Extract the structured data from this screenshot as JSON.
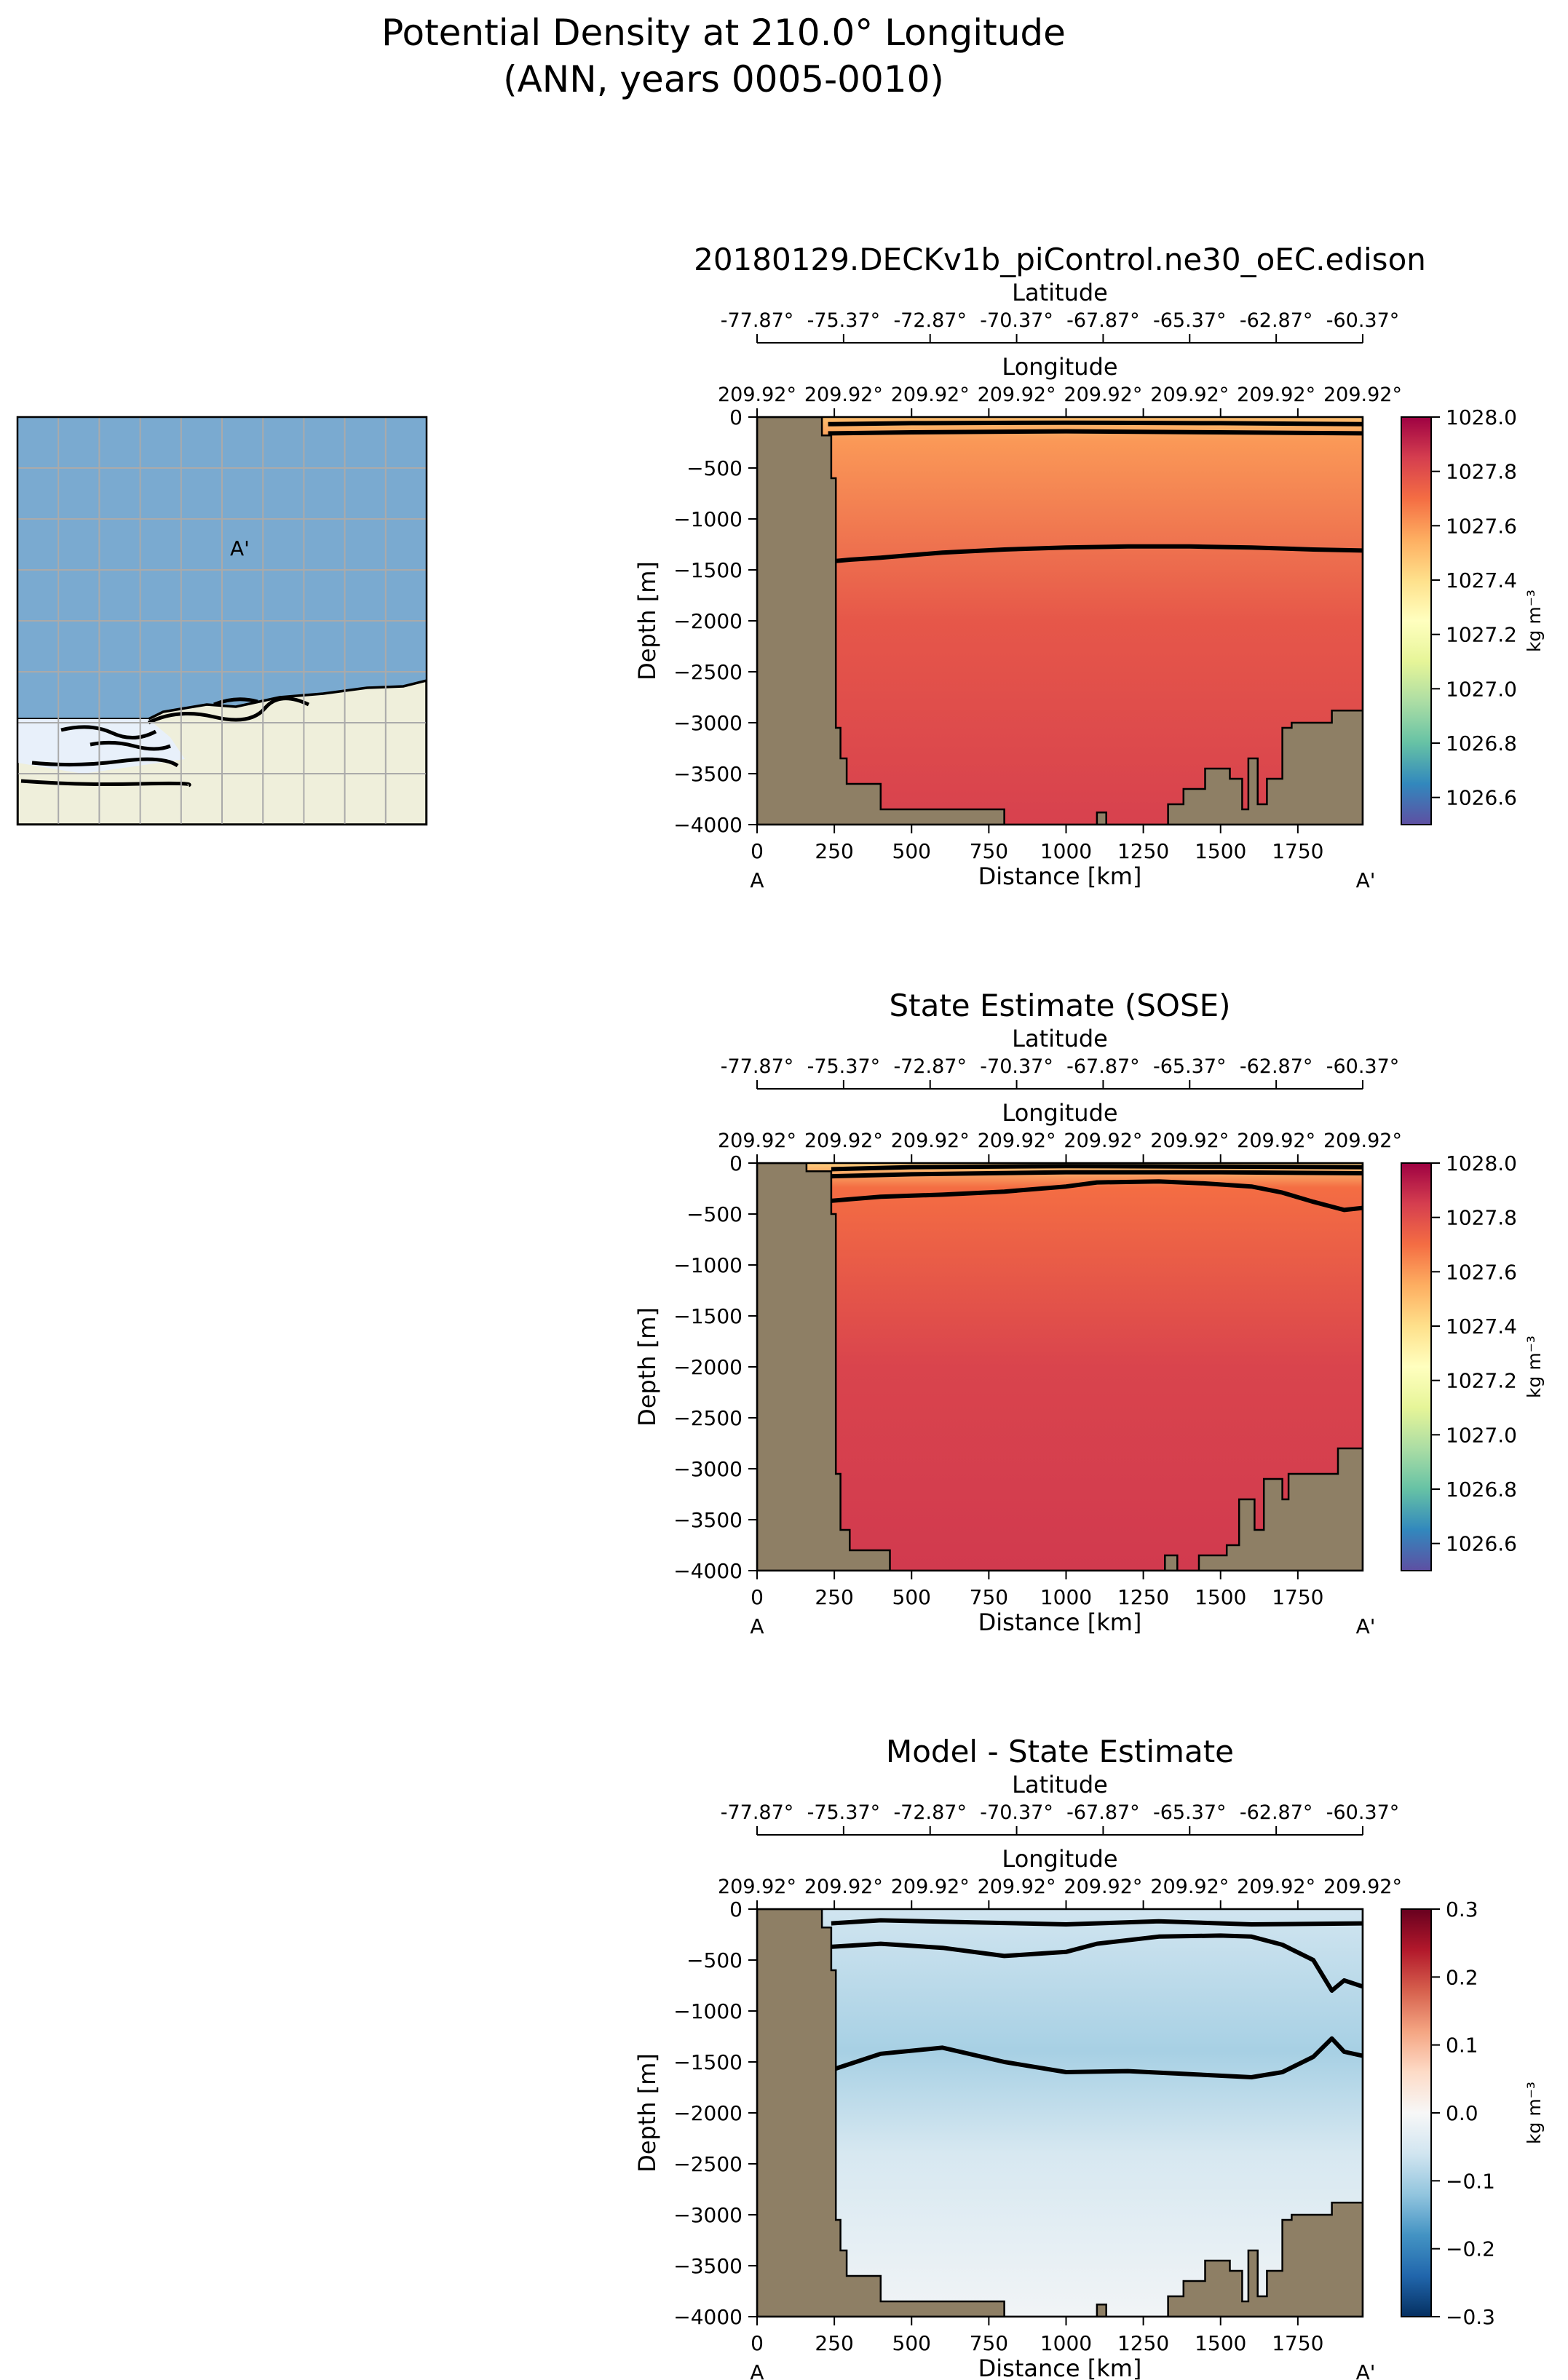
{
  "figure": {
    "title_line1": "Potential Density at 210.0° Longitude",
    "title_line2": "(ANN, years 0005-0010)"
  },
  "inset_map": {
    "label": "A'",
    "ocean_color": "#7aaad0",
    "land_color": "#efefdb",
    "ice_color": "#e8f0fa",
    "grid_color": "#aaaaaa"
  },
  "land_color": "#8e7f65",
  "chart_data": [
    {
      "type": "heatmap",
      "title": "20180129.DECKv1b_piControl.ne30_oEC.edison",
      "xlabel": "Distance [km]",
      "ylabel": "Depth [m]",
      "xlim": [
        0,
        1960
      ],
      "ylim": [
        -4000,
        0
      ],
      "x_ticks": [
        0,
        250,
        500,
        750,
        1000,
        1250,
        1500,
        1750
      ],
      "y_ticks": [
        0,
        -500,
        -1000,
        -1500,
        -2000,
        -2500,
        -3000,
        -3500,
        -4000
      ],
      "x_tick_labels": [
        "0",
        "250",
        "500",
        "750",
        "1000",
        "1250",
        "1500",
        "1750"
      ],
      "y_tick_labels": [
        "0",
        "−500",
        "−1000",
        "−1500",
        "−2000",
        "−2500",
        "−3000",
        "−3500",
        "−4000"
      ],
      "end_labels": [
        "A",
        "A'"
      ],
      "latitude_axis": {
        "label": "Latitude",
        "ticks": [
          "-77.87°",
          "-75.37°",
          "-72.87°",
          "-70.37°",
          "-67.87°",
          "-65.37°",
          "-62.87°",
          "-60.37°"
        ]
      },
      "longitude_axis": {
        "label": "Longitude",
        "ticks": [
          "209.92°",
          "209.92°",
          "209.92°",
          "209.92°",
          "209.92°",
          "209.92°",
          "209.92°",
          "209.92°"
        ]
      },
      "colorbar": {
        "label": "kg m⁻³",
        "range": [
          1026.5,
          1028.0
        ],
        "ticks": [
          1026.6,
          1026.8,
          1027.0,
          1027.2,
          1027.4,
          1027.6,
          1027.8,
          1028.0
        ],
        "tick_labels": [
          "1026.6",
          "1026.8",
          "1027.0",
          "1027.2",
          "1027.4",
          "1027.6",
          "1027.8",
          "1028.0"
        ],
        "colormap": "Spectral_r"
      },
      "field": {
        "top_value": 1027.6,
        "surface_value": 1027.5,
        "bottom_value": 1027.84
      },
      "contours": [
        {
          "x": [
            230,
            300,
            400,
            600,
            800,
            1000,
            1200,
            1400,
            1600,
            1800,
            1960
          ],
          "depth": [
            -1420,
            -1400,
            -1380,
            -1330,
            -1300,
            -1280,
            -1270,
            -1270,
            -1280,
            -1300,
            -1310
          ]
        },
        {
          "x": [
            230,
            500,
            1000,
            1500,
            1960
          ],
          "depth": [
            -160,
            -150,
            -140,
            -150,
            -160
          ]
        },
        {
          "x": [
            230,
            500,
            1000,
            1500,
            1960
          ],
          "depth": [
            -70,
            -60,
            -55,
            -60,
            -70
          ]
        }
      ],
      "bathymetry": [
        [
          0,
          0
        ],
        [
          210,
          0
        ],
        [
          210,
          -180
        ],
        [
          240,
          -180
        ],
        [
          240,
          -600
        ],
        [
          255,
          -600
        ],
        [
          255,
          -3050
        ],
        [
          270,
          -3050
        ],
        [
          270,
          -3350
        ],
        [
          290,
          -3350
        ],
        [
          290,
          -3600
        ],
        [
          400,
          -3600
        ],
        [
          400,
          -3850
        ],
        [
          800,
          -3850
        ],
        [
          800,
          -4000
        ],
        [
          1100,
          -4000
        ],
        [
          1100,
          -3880
        ],
        [
          1130,
          -3880
        ],
        [
          1130,
          -4000
        ],
        [
          1330,
          -4000
        ],
        [
          1330,
          -3800
        ],
        [
          1380,
          -3800
        ],
        [
          1380,
          -3650
        ],
        [
          1450,
          -3650
        ],
        [
          1450,
          -3450
        ],
        [
          1530,
          -3450
        ],
        [
          1530,
          -3550
        ],
        [
          1570,
          -3550
        ],
        [
          1570,
          -3850
        ],
        [
          1590,
          -3850
        ],
        [
          1590,
          -3350
        ],
        [
          1620,
          -3350
        ],
        [
          1620,
          -3800
        ],
        [
          1650,
          -3800
        ],
        [
          1650,
          -3550
        ],
        [
          1700,
          -3550
        ],
        [
          1700,
          -3050
        ],
        [
          1730,
          -3050
        ],
        [
          1730,
          -3000
        ],
        [
          1860,
          -3000
        ],
        [
          1860,
          -2880
        ],
        [
          1960,
          -2880
        ],
        [
          1960,
          0
        ]
      ]
    },
    {
      "type": "heatmap",
      "title": "State Estimate (SOSE)",
      "xlabel": "Distance [km]",
      "ylabel": "Depth [m]",
      "xlim": [
        0,
        1960
      ],
      "ylim": [
        -4000,
        0
      ],
      "x_ticks": [
        0,
        250,
        500,
        750,
        1000,
        1250,
        1500,
        1750
      ],
      "y_ticks": [
        0,
        -500,
        -1000,
        -1500,
        -2000,
        -2500,
        -3000,
        -3500,
        -4000
      ],
      "x_tick_labels": [
        "0",
        "250",
        "500",
        "750",
        "1000",
        "1250",
        "1500",
        "1750"
      ],
      "y_tick_labels": [
        "0",
        "−500",
        "−1000",
        "−1500",
        "−2000",
        "−2500",
        "−3000",
        "−3500",
        "−4000"
      ],
      "end_labels": [
        "A",
        "A'"
      ],
      "latitude_axis": {
        "label": "Latitude",
        "ticks": [
          "-77.87°",
          "-75.37°",
          "-72.87°",
          "-70.37°",
          "-67.87°",
          "-65.37°",
          "-62.87°",
          "-60.37°"
        ]
      },
      "longitude_axis": {
        "label": "Longitude",
        "ticks": [
          "209.92°",
          "209.92°",
          "209.92°",
          "209.92°",
          "209.92°",
          "209.92°",
          "209.92°",
          "209.92°"
        ]
      },
      "colorbar": {
        "label": "kg m⁻³",
        "range": [
          1026.5,
          1028.0
        ],
        "ticks": [
          1026.6,
          1026.8,
          1027.0,
          1027.2,
          1027.4,
          1027.6,
          1027.8,
          1028.0
        ],
        "tick_labels": [
          "1026.6",
          "1026.8",
          "1027.0",
          "1027.2",
          "1027.4",
          "1027.6",
          "1027.8",
          "1028.0"
        ],
        "colormap": "Spectral_r"
      },
      "field": {
        "top_value": 1027.7,
        "surface_value": 1027.45,
        "bottom_value": 1027.86
      },
      "contours": [
        {
          "x": [
            240,
            400,
            600,
            800,
            1000,
            1100,
            1300,
            1450,
            1600,
            1700,
            1800,
            1900,
            1960
          ],
          "depth": [
            -370,
            -330,
            -310,
            -280,
            -230,
            -190,
            -180,
            -200,
            -230,
            -290,
            -380,
            -460,
            -440
          ]
        },
        {
          "x": [
            240,
            500,
            1000,
            1500,
            1960
          ],
          "depth": [
            -130,
            -110,
            -90,
            -90,
            -100
          ]
        },
        {
          "x": [
            240,
            500,
            1000,
            1500,
            1960
          ],
          "depth": [
            -60,
            -40,
            -30,
            -35,
            -40
          ]
        }
      ],
      "bathymetry": [
        [
          0,
          0
        ],
        [
          160,
          0
        ],
        [
          160,
          -80
        ],
        [
          240,
          -80
        ],
        [
          240,
          -500
        ],
        [
          255,
          -500
        ],
        [
          255,
          -3050
        ],
        [
          270,
          -3050
        ],
        [
          270,
          -3600
        ],
        [
          300,
          -3600
        ],
        [
          300,
          -3800
        ],
        [
          430,
          -3800
        ],
        [
          430,
          -4000
        ],
        [
          1320,
          -4000
        ],
        [
          1320,
          -3850
        ],
        [
          1360,
          -3850
        ],
        [
          1360,
          -4000
        ],
        [
          1430,
          -4000
        ],
        [
          1430,
          -3850
        ],
        [
          1520,
          -3850
        ],
        [
          1520,
          -3750
        ],
        [
          1560,
          -3750
        ],
        [
          1560,
          -3300
        ],
        [
          1610,
          -3300
        ],
        [
          1610,
          -3600
        ],
        [
          1640,
          -3600
        ],
        [
          1640,
          -3100
        ],
        [
          1700,
          -3100
        ],
        [
          1700,
          -3300
        ],
        [
          1720,
          -3300
        ],
        [
          1720,
          -3050
        ],
        [
          1880,
          -3050
        ],
        [
          1880,
          -2800
        ],
        [
          1960,
          -2800
        ],
        [
          1960,
          0
        ]
      ]
    },
    {
      "type": "heatmap",
      "title": "Model - State Estimate",
      "xlabel": "Distance [km]",
      "ylabel": "Depth [m]",
      "xlim": [
        0,
        1960
      ],
      "ylim": [
        -4000,
        0
      ],
      "x_ticks": [
        0,
        250,
        500,
        750,
        1000,
        1250,
        1500,
        1750
      ],
      "y_ticks": [
        0,
        -500,
        -1000,
        -1500,
        -2000,
        -2500,
        -3000,
        -3500,
        -4000
      ],
      "x_tick_labels": [
        "0",
        "250",
        "500",
        "750",
        "1000",
        "1250",
        "1500",
        "1750"
      ],
      "y_tick_labels": [
        "0",
        "−500",
        "−1000",
        "−1500",
        "−2000",
        "−2500",
        "−3000",
        "−3500",
        "−4000"
      ],
      "end_labels": [
        "A",
        "A'"
      ],
      "latitude_axis": {
        "label": "Latitude",
        "ticks": [
          "-77.87°",
          "-75.37°",
          "-72.87°",
          "-70.37°",
          "-67.87°",
          "-65.37°",
          "-62.87°",
          "-60.37°"
        ]
      },
      "longitude_axis": {
        "label": "Longitude",
        "ticks": [
          "209.92°",
          "209.92°",
          "209.92°",
          "209.92°",
          "209.92°",
          "209.92°",
          "209.92°",
          "209.92°"
        ]
      },
      "colorbar": {
        "label": "kg m⁻³",
        "range": [
          -0.3,
          0.3
        ],
        "ticks": [
          -0.3,
          -0.2,
          -0.1,
          0.0,
          0.1,
          0.2,
          0.3
        ],
        "tick_labels": [
          "−0.3",
          "−0.2",
          "−0.1",
          "0.0",
          "0.1",
          "0.2",
          "0.3"
        ],
        "colormap": "RdBu_r"
      },
      "field": {
        "top_value": -0.06,
        "mid_value": -0.1,
        "bottom_value": -0.01
      },
      "contours": [
        {
          "x": [
            240,
            400,
            600,
            800,
            1000,
            1200,
            1400,
            1600,
            1700,
            1800,
            1860,
            1900,
            1960
          ],
          "depth": [
            -1580,
            -1420,
            -1360,
            -1500,
            -1600,
            -1590,
            -1620,
            -1650,
            -1600,
            -1450,
            -1270,
            -1400,
            -1440
          ]
        },
        {
          "x": [
            240,
            400,
            600,
            800,
            1000,
            1100,
            1300,
            1500,
            1600,
            1700,
            1800,
            1860,
            1900,
            1960
          ],
          "depth": [
            -370,
            -340,
            -380,
            -460,
            -420,
            -340,
            -270,
            -260,
            -270,
            -350,
            -500,
            -800,
            -700,
            -760
          ]
        },
        {
          "x": [
            240,
            400,
            700,
            1000,
            1300,
            1600,
            1960
          ],
          "depth": [
            -140,
            -110,
            -130,
            -150,
            -120,
            -150,
            -140
          ]
        }
      ],
      "bathymetry": [
        [
          0,
          0
        ],
        [
          210,
          0
        ],
        [
          210,
          -180
        ],
        [
          240,
          -180
        ],
        [
          240,
          -600
        ],
        [
          255,
          -600
        ],
        [
          255,
          -3050
        ],
        [
          270,
          -3050
        ],
        [
          270,
          -3350
        ],
        [
          290,
          -3350
        ],
        [
          290,
          -3600
        ],
        [
          400,
          -3600
        ],
        [
          400,
          -3850
        ],
        [
          800,
          -3850
        ],
        [
          800,
          -4000
        ],
        [
          1100,
          -4000
        ],
        [
          1100,
          -3880
        ],
        [
          1130,
          -3880
        ],
        [
          1130,
          -4000
        ],
        [
          1330,
          -4000
        ],
        [
          1330,
          -3800
        ],
        [
          1380,
          -3800
        ],
        [
          1380,
          -3650
        ],
        [
          1450,
          -3650
        ],
        [
          1450,
          -3450
        ],
        [
          1530,
          -3450
        ],
        [
          1530,
          -3550
        ],
        [
          1570,
          -3550
        ],
        [
          1570,
          -3850
        ],
        [
          1590,
          -3850
        ],
        [
          1590,
          -3350
        ],
        [
          1620,
          -3350
        ],
        [
          1620,
          -3800
        ],
        [
          1650,
          -3800
        ],
        [
          1650,
          -3550
        ],
        [
          1700,
          -3550
        ],
        [
          1700,
          -3050
        ],
        [
          1730,
          -3050
        ],
        [
          1730,
          -3000
        ],
        [
          1860,
          -3000
        ],
        [
          1860,
          -2880
        ],
        [
          1960,
          -2880
        ],
        [
          1960,
          0
        ]
      ]
    }
  ]
}
